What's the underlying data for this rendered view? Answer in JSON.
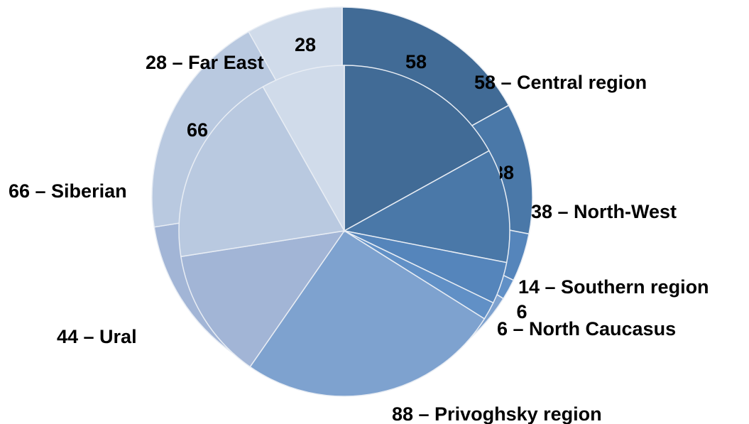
{
  "chart_data": {
    "type": "pie",
    "labels": [
      "58 – Central region",
      "38 – North-West",
      "14 – Southern region",
      "6 – North Caucasus",
      "88 – Privoghsky region",
      "44 – Ural",
      "66 – Siberian",
      "28 – Far East"
    ],
    "values": [
      58,
      38,
      14,
      6,
      88,
      44,
      66,
      28
    ],
    "colors": [
      "#416b96",
      "#4a78a8",
      "#5585bb",
      "#6190c6",
      "#7ea2cf",
      "#a2b5d6",
      "#b9c9e0",
      "#d0dbea"
    ]
  }
}
